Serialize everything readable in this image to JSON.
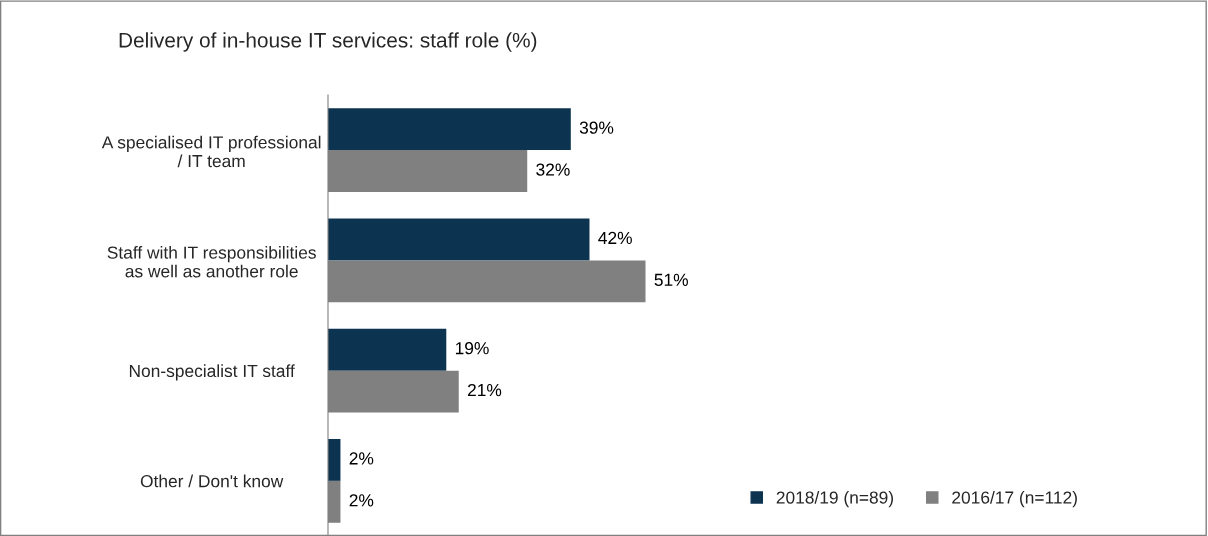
{
  "chart_data": {
    "type": "bar",
    "orientation": "horizontal",
    "title": "Delivery of in-house IT services: staff role (%)",
    "categories": [
      "A specialised IT professional\n/ IT team",
      "Staff with IT responsibilities\nas well as another role",
      "Non-specialist IT staff",
      "Other / Don't know"
    ],
    "series": [
      {
        "name": "2018/19 (n=89)",
        "color": "#0c3350",
        "values": [
          39,
          42,
          19,
          2
        ],
        "value_labels": [
          "39%",
          "42%",
          "19%",
          "2%"
        ]
      },
      {
        "name": "2016/17 (n=112)",
        "color": "#808080",
        "values": [
          32,
          51,
          21,
          2
        ],
        "value_labels": [
          "32%",
          "51%",
          "21%",
          "2%"
        ]
      }
    ],
    "legend": "bottom right",
    "grid": false
  }
}
